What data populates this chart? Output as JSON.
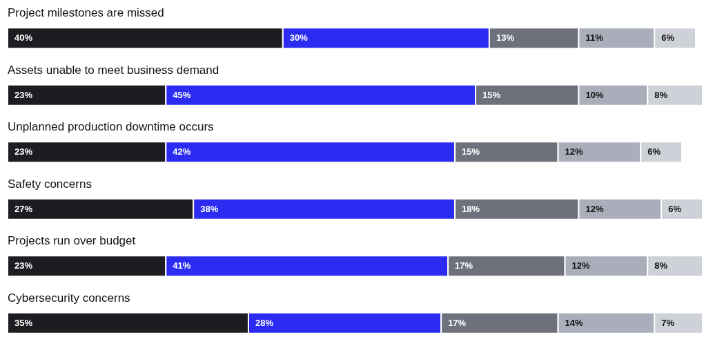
{
  "chart_data": {
    "type": "bar",
    "orientation": "horizontal",
    "stacked": true,
    "tick_labels": false,
    "categories": [
      "Project milestones are missed",
      "Assets unable to meet business demand",
      "Unplanned production downtime occurs",
      "Safety concerns",
      "Projects run over budget",
      "Cybersecurity concerns"
    ],
    "series": [
      {
        "color": "#1c1c21",
        "values": [
          40,
          23,
          23,
          27,
          23,
          35
        ],
        "value_labels": [
          "40%",
          "23%",
          "23%",
          "27%",
          "23%",
          "35%"
        ]
      },
      {
        "color": "#2b2bf2",
        "values": [
          30,
          45,
          42,
          38,
          41,
          28
        ],
        "value_labels": [
          "30%",
          "45%",
          "42%",
          "38%",
          "41%",
          "28%"
        ]
      },
      {
        "color": "#6e717c",
        "values": [
          13,
          15,
          15,
          18,
          17,
          17
        ],
        "value_labels": [
          "13%",
          "15%",
          "15%",
          "18%",
          "17%",
          "17%"
        ]
      },
      {
        "color": "#aaaeba",
        "values": [
          11,
          10,
          12,
          12,
          12,
          14
        ],
        "value_labels": [
          "11%",
          "10%",
          "12%",
          "12%",
          "12%",
          "14%"
        ]
      },
      {
        "color": "#cfd1d9",
        "values": [
          6,
          8,
          6,
          6,
          8,
          7
        ],
        "value_labels": [
          "6%",
          "8%",
          "6%",
          "6%",
          "8%",
          "7%"
        ]
      }
    ]
  }
}
